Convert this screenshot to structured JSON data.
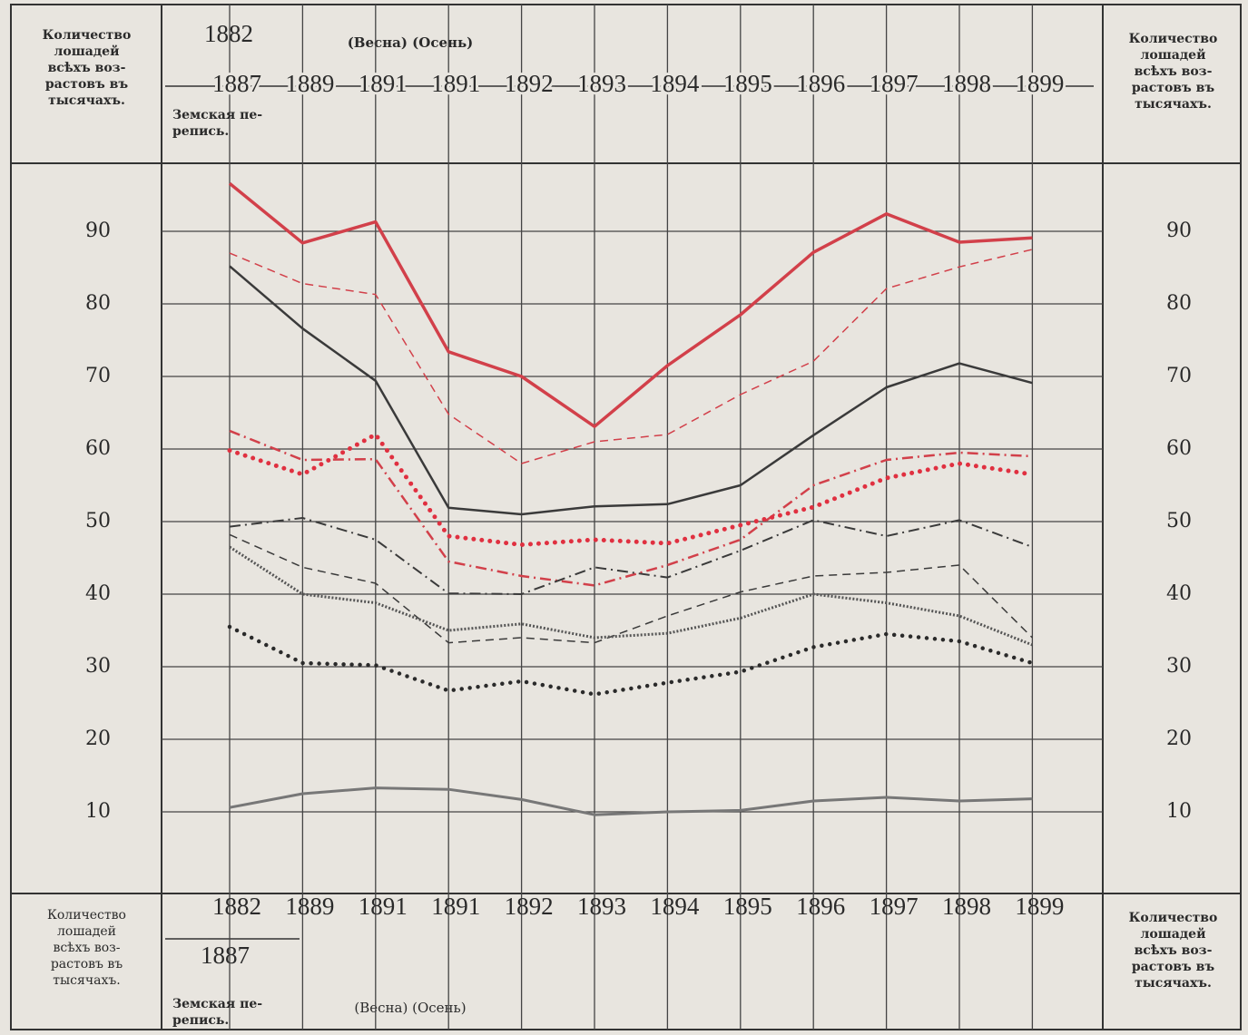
{
  "chart_data": {
    "type": "line",
    "y_label": "Количество\nлошадей\nвсѣхъ воз-\nрастовъ въ\nтысячахъ.",
    "categories": [
      "1887",
      "1889",
      "1891",
      "1891",
      "1892",
      "1893",
      "1894",
      "1895",
      "1896",
      "1897",
      "1898",
      "1899"
    ],
    "bottom_categories": [
      "1882",
      "1889",
      "1891",
      "1891",
      "1892",
      "1893",
      "1894",
      "1895",
      "1896",
      "1897",
      "1898",
      "1899"
    ],
    "first_year_top": "1882",
    "first_year_bottom": "1887",
    "season_note": "(Весна) (Осень)",
    "census_note": "Земская пе-\nрепись.",
    "ylim": [
      0,
      100
    ],
    "yticks": [
      10,
      20,
      30,
      40,
      50,
      60,
      70,
      80,
      90
    ],
    "grid": true,
    "series": [
      {
        "color": "#d2404a",
        "style": "solid",
        "width": 3.5,
        "values": [
          96.6,
          88.4,
          91.3,
          73.4,
          70,
          63.1,
          71.5,
          78.5,
          87.1,
          92.4,
          88.5,
          89.1
        ]
      },
      {
        "color": "#d2404a",
        "style": "dashed",
        "width": 1.5,
        "values": [
          87,
          82.8,
          81.3,
          64.8,
          58,
          61,
          62,
          67.5,
          72.1,
          82.1,
          85.1,
          87.5
        ]
      },
      {
        "color": "#3a3a3a",
        "style": "solid",
        "width": 2.5,
        "values": [
          85.2,
          76.6,
          69.4,
          51.9,
          51,
          52.1,
          52.4,
          55,
          61.9,
          68.5,
          71.8,
          69.1
        ]
      },
      {
        "color": "#d2404a",
        "style": "dashdot",
        "width": 2.5,
        "values": [
          62.5,
          58.5,
          58.6,
          44.5,
          42.5,
          41.2,
          44,
          47.5,
          55,
          58.5,
          59.5,
          59
        ]
      },
      {
        "color": "#e03040",
        "style": "dots",
        "width": 5,
        "values": [
          59.8,
          56.5,
          62,
          48,
          46.8,
          47.5,
          47,
          49.5,
          52,
          56,
          58,
          56.5
        ]
      },
      {
        "color": "#3a3a3a",
        "style": "dashdot",
        "width": 2,
        "values": [
          49.3,
          50.5,
          47.5,
          40.1,
          40,
          43.7,
          42.3,
          46,
          50.2,
          48,
          50.2,
          46.5
        ]
      },
      {
        "color": "#3a3a3a",
        "style": "dashed",
        "width": 1.5,
        "values": [
          48.2,
          43.7,
          41.5,
          33.3,
          34,
          33.3,
          37,
          40.3,
          42.5,
          43,
          44,
          34
        ]
      },
      {
        "color": "#555555",
        "style": "hatched",
        "width": 3,
        "values": [
          46.5,
          40,
          38.8,
          35,
          35.9,
          34,
          34.6,
          36.7,
          40,
          38.8,
          37,
          33
        ]
      },
      {
        "color": "#2a2a2a",
        "style": "dots",
        "width": 4.5,
        "values": [
          35.5,
          30.5,
          30.2,
          26.7,
          28,
          26.2,
          27.8,
          29.3,
          32.7,
          34.5,
          33.5,
          30.5
        ]
      },
      {
        "color": "#777777",
        "style": "solid",
        "width": 3,
        "values": [
          10.6,
          12.5,
          13.3,
          13.1,
          11.7,
          9.6,
          10,
          10.2,
          11.5,
          12,
          11.5,
          11.8
        ]
      }
    ]
  }
}
